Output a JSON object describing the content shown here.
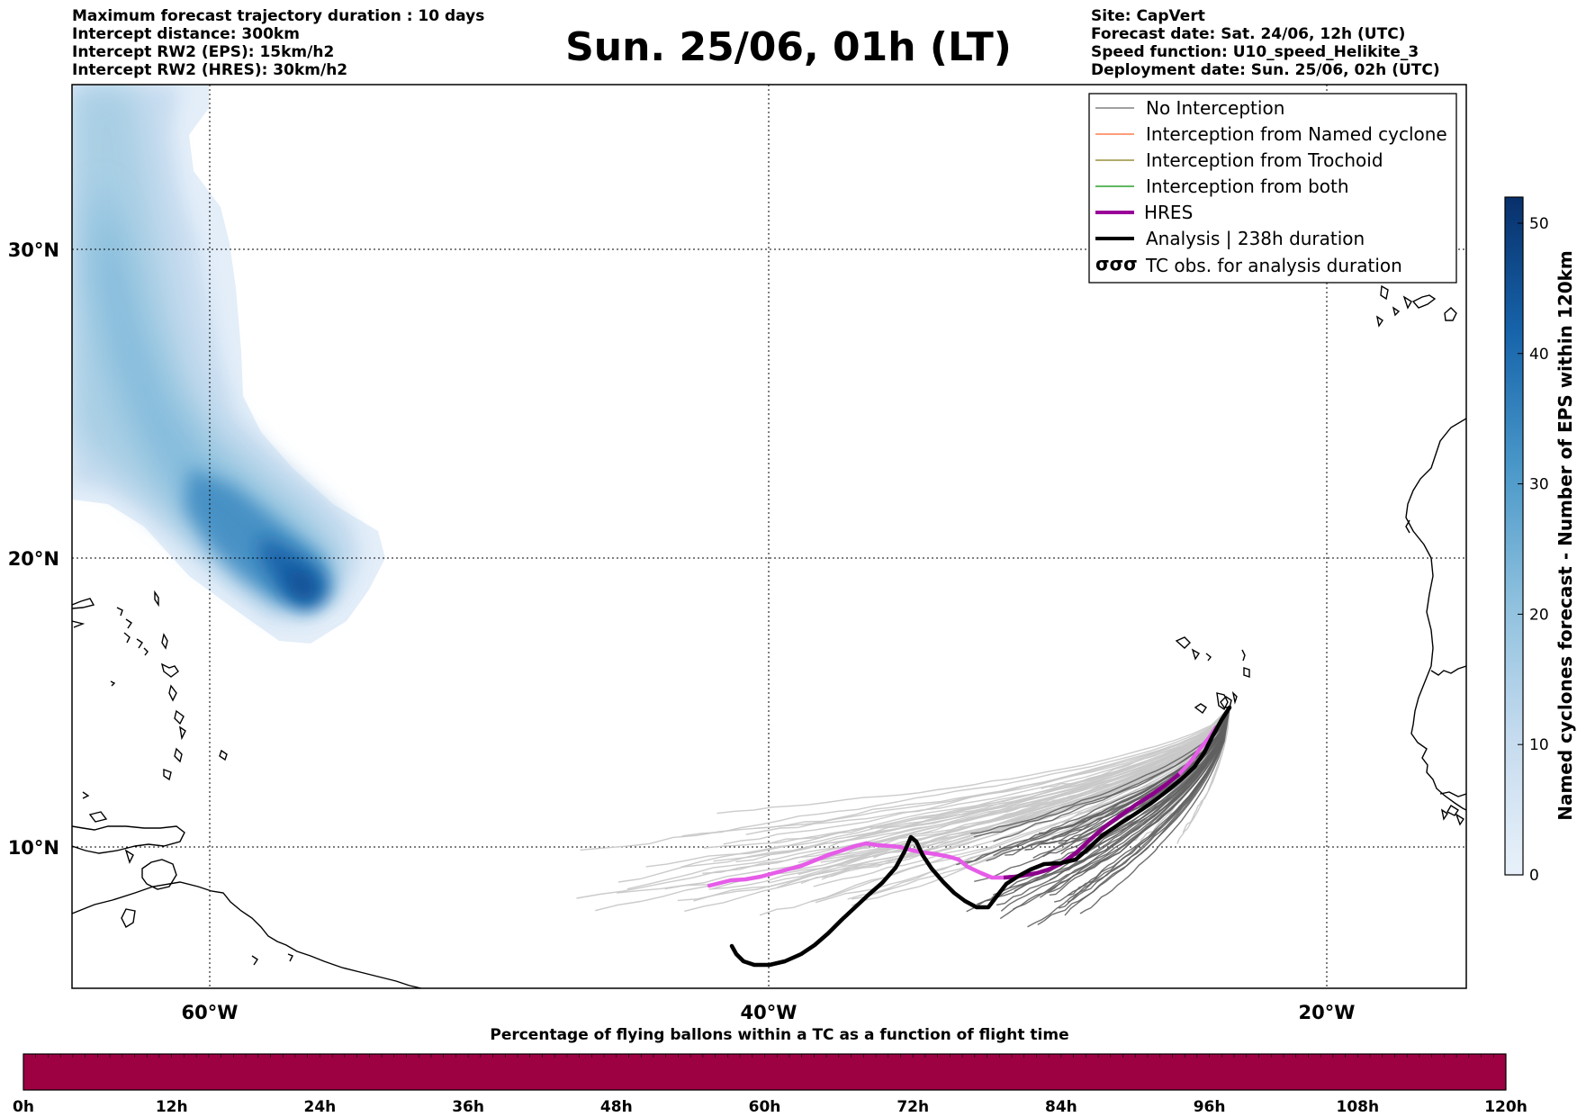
{
  "header": {
    "left_lines": [
      "Maximum forecast trajectory duration : 10 days",
      "Intercept distance: 300km",
      "Intercept RW2 (EPS):  15km/h2",
      "Intercept RW2 (HRES): 30km/h2"
    ],
    "title": "Sun. 25/06, 01h (LT)",
    "right_lines": [
      "Site: CapVert",
      "Forecast date: Sat. 24/06, 12h (UTC)",
      "Speed function: U10_speed_Helikite_3",
      "Deployment date: Sun. 25/06, 02h (UTC)"
    ]
  },
  "map": {
    "lon_ticks": [
      "60°W",
      "40°W",
      "20°W"
    ],
    "lat_ticks": [
      "30°N",
      "20°N",
      "10°N"
    ],
    "legend": [
      {
        "label": "No Interception",
        "color": "#808080",
        "style": "thin"
      },
      {
        "label": "Interception from Named cyclone",
        "color": "#ff7f50",
        "style": "thin"
      },
      {
        "label": "Interception from Trochoid",
        "color": "#9a8f3c",
        "style": "thin"
      },
      {
        "label": "Interception from both",
        "color": "#2ca02c",
        "style": "thin"
      },
      {
        "label": "HRES",
        "color": "#990099",
        "style": "thick"
      },
      {
        "label": "Analysis | 238h duration",
        "color": "#000000",
        "style": "thick"
      },
      {
        "label": "TC obs. for analysis duration",
        "color": "#000000",
        "style": "symbol",
        "symbol": "σσσ"
      }
    ]
  },
  "colorbar": {
    "title": "Named cyclones forecast - Number of EPS within 120km",
    "ticks": [
      "0",
      "10",
      "20",
      "30",
      "40",
      "50"
    ],
    "tick_values": [
      0,
      10,
      20,
      30,
      40,
      50
    ],
    "vmax": 52,
    "color_low": "#e3eef9",
    "color_high": "#08306b"
  },
  "bottom_bar": {
    "title": "Percentage of flying ballons within a TC as a function of flight time",
    "color": "#9e0142",
    "ticks": [
      "0h",
      "12h",
      "24h",
      "36h",
      "48h",
      "60h",
      "72h",
      "84h",
      "96h",
      "108h",
      "120h"
    ]
  }
}
